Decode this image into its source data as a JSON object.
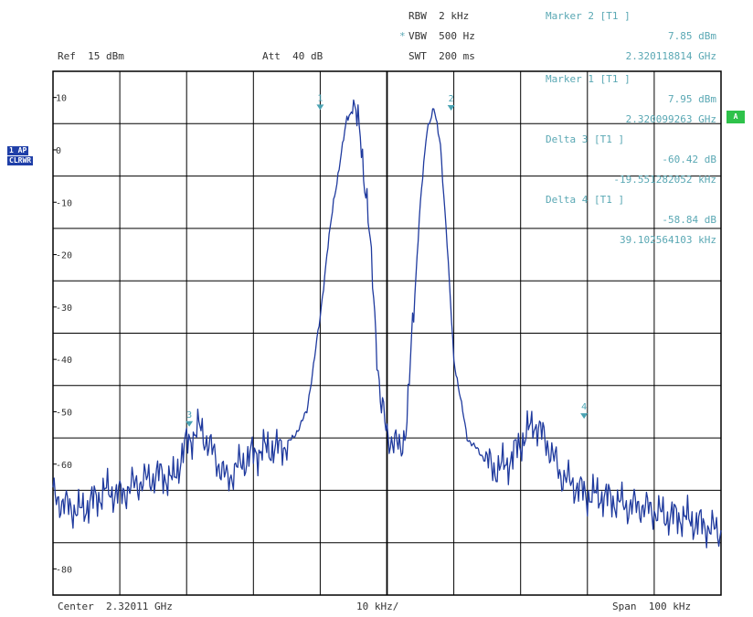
{
  "header": {
    "ref": "Ref  15 dBm",
    "att": "Att  40 dB",
    "rbw": "RBW  2 kHz",
    "vbw": "VBW  500 Hz",
    "vbw_mark": "*",
    "swt": "SWT  200 ms"
  },
  "markers_panel": {
    "m2_title": "Marker 2 [T1 ]",
    "m2_level": "7.85 dBm",
    "m2_freq": "2.320118814 GHz",
    "m1_title": "Marker 1 [T1 ]",
    "m1_level": "7.95 dBm",
    "m1_freq": "2.320099263 GHz",
    "d3_title": "Delta 3 [T1 ]",
    "d3_level": "-60.42 dB",
    "d3_freq": "-19.551282052 kHz",
    "d4_title": "Delta 4 [T1 ]",
    "d4_level": "-58.84 dB",
    "d4_freq": "39.102564103 kHz"
  },
  "side_badges": {
    "trace_line1": "1 AP",
    "trace_line2": "CLRWR",
    "right": "A"
  },
  "footer": {
    "center": "Center  2.32011 GHz",
    "div": "10 kHz/",
    "span": "Span  100 kHz"
  },
  "colors": {
    "trace": "#1f3a9e",
    "grid": "#000000",
    "marker": "#4aa3b3",
    "text": "#333333"
  },
  "chart_data": {
    "type": "line",
    "x_unit": "kHz offset from center",
    "xlim": [
      -50,
      50
    ],
    "ylim": [
      -85,
      15
    ],
    "y_ticks": [
      10,
      0,
      -10,
      -20,
      -30,
      -40,
      -50,
      -60,
      -80
    ],
    "grid": true,
    "series": [
      {
        "x": [
          -50,
          -48,
          -46,
          -44,
          -42,
          -40,
          -38,
          -36,
          -34,
          -32,
          -30,
          -28,
          -26,
          -24,
          -22,
          -20,
          -18,
          -16,
          -14,
          -12,
          -10,
          -9,
          -8,
          -7,
          -6,
          -5,
          -4,
          -3,
          -2,
          -1,
          0,
          1,
          2,
          3,
          4,
          5,
          6,
          7,
          8,
          9,
          10,
          12,
          14,
          16,
          18,
          20,
          22,
          24,
          26,
          28,
          30,
          32,
          34,
          36,
          38,
          40,
          42,
          44,
          46,
          48,
          50
        ],
        "y": [
          -66,
          -68,
          -69,
          -67,
          -65,
          -66,
          -64,
          -63,
          -62,
          -63,
          -56,
          -53,
          -58,
          -63,
          -60,
          -58,
          -57,
          -57,
          -55,
          -50,
          -32,
          -20,
          -10,
          -2,
          6,
          8,
          3,
          -10,
          -28,
          -48,
          -54,
          -56,
          -57,
          -52,
          -30,
          -10,
          4,
          8,
          1,
          -18,
          -40,
          -55,
          -58,
          -61,
          -60,
          -56,
          -52,
          -56,
          -62,
          -64,
          -66,
          -66,
          -67,
          -68,
          -68,
          -69,
          -70,
          -70,
          -71,
          -72,
          -73
        ]
      }
    ],
    "markers": [
      {
        "label": "1",
        "x": -10,
        "y": 7.95
      },
      {
        "label": "2",
        "x": 9.6,
        "y": 7.85
      },
      {
        "label": "3",
        "x": -29.6,
        "y": -52.5
      },
      {
        "label": "4",
        "x": 29.5,
        "y": -51.0
      }
    ]
  }
}
